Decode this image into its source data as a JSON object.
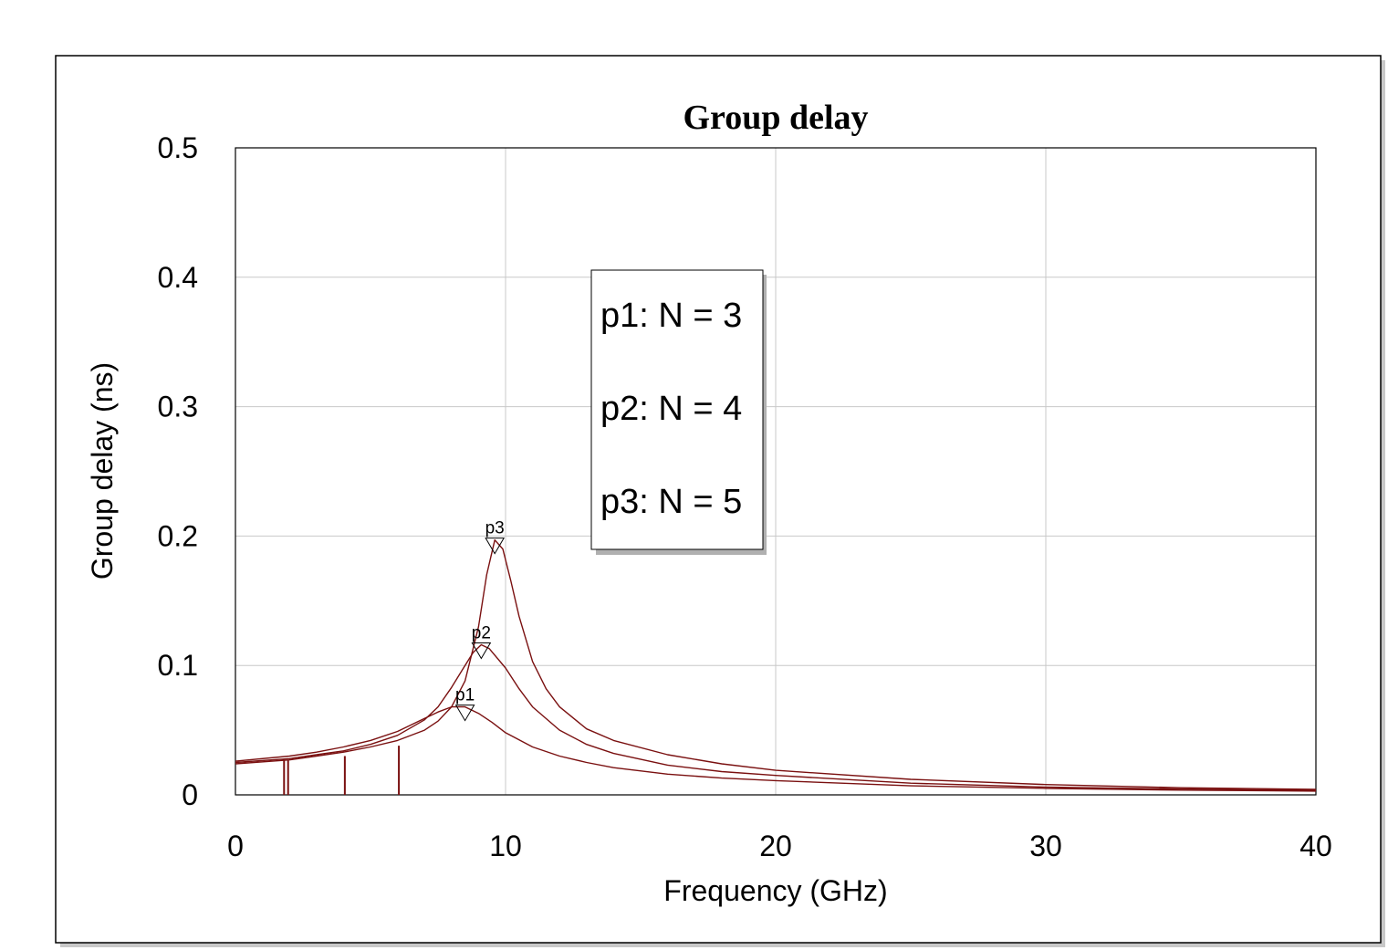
{
  "chart_data": {
    "type": "line",
    "title": "Group delay",
    "xlabel": "Frequency (GHz)",
    "ylabel": "Group delay (ns)",
    "xlim": [
      0,
      40
    ],
    "ylim": [
      0,
      0.5
    ],
    "xticks": [
      0,
      10,
      20,
      30,
      40
    ],
    "yticks": [
      0,
      0.1,
      0.2,
      0.3,
      0.4,
      0.5
    ],
    "xtick_labels": [
      "0",
      "10",
      "20",
      "30",
      "40"
    ],
    "ytick_labels": [
      "0",
      "0.1",
      "0.2",
      "0.3",
      "0.4",
      "0.5"
    ],
    "grid": true,
    "line_color": "#7a1010",
    "legend_entries": [
      "p1: N = 3",
      "p2: N = 4",
      "p3: N = 5"
    ],
    "series": [
      {
        "marker": "p1",
        "marker_point": [
          8.5,
          0.068
        ],
        "x": [
          0,
          2,
          3,
          4,
          5,
          6,
          6.5,
          7,
          7.5,
          8,
          8.5,
          9,
          9.5,
          10,
          11,
          12,
          13,
          14,
          16,
          18,
          20,
          25,
          30,
          35,
          40
        ],
        "y": [
          0.026,
          0.03,
          0.033,
          0.037,
          0.042,
          0.049,
          0.054,
          0.059,
          0.064,
          0.068,
          0.068,
          0.063,
          0.056,
          0.048,
          0.037,
          0.03,
          0.025,
          0.021,
          0.016,
          0.013,
          0.011,
          0.007,
          0.005,
          0.0037,
          0.0029
        ]
      },
      {
        "marker": "p2",
        "marker_point": [
          9.1,
          0.116
        ],
        "x": [
          0,
          2,
          3,
          4,
          5,
          6,
          7,
          7.5,
          8,
          8.5,
          8.8,
          9.1,
          9.4,
          10,
          10.5,
          11,
          12,
          13,
          14,
          16,
          18,
          20,
          25,
          30,
          35,
          40
        ],
        "y": [
          0.025,
          0.028,
          0.031,
          0.034,
          0.039,
          0.046,
          0.058,
          0.068,
          0.083,
          0.1,
          0.11,
          0.116,
          0.113,
          0.098,
          0.082,
          0.068,
          0.05,
          0.039,
          0.032,
          0.023,
          0.018,
          0.015,
          0.009,
          0.006,
          0.0045,
          0.0035
        ]
      },
      {
        "marker": "p3",
        "marker_point": [
          9.6,
          0.197
        ],
        "x": [
          0,
          2,
          3,
          4,
          5,
          6,
          7,
          7.5,
          8,
          8.5,
          9,
          9.3,
          9.6,
          9.9,
          10.2,
          10.5,
          11,
          11.5,
          12,
          13,
          14,
          16,
          18,
          20,
          25,
          30,
          35,
          40
        ],
        "y": [
          0.024,
          0.027,
          0.03,
          0.033,
          0.037,
          0.042,
          0.05,
          0.057,
          0.068,
          0.088,
          0.13,
          0.17,
          0.197,
          0.19,
          0.165,
          0.138,
          0.103,
          0.082,
          0.068,
          0.051,
          0.042,
          0.031,
          0.024,
          0.019,
          0.012,
          0.008,
          0.0055,
          0.0042
        ]
      }
    ],
    "vertical_lines": [
      {
        "x": 1.8,
        "y": 0.027
      },
      {
        "x": 1.95,
        "y": 0.027
      },
      {
        "x": 4.05,
        "y": 0.03
      },
      {
        "x": 6.05,
        "y": 0.038
      }
    ]
  }
}
